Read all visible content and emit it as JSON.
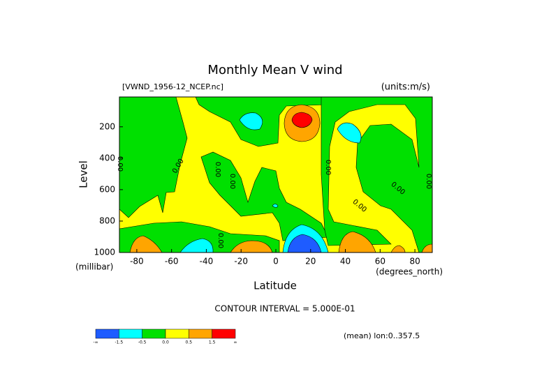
{
  "chart_data": {
    "type": "contour",
    "title": "Monthly Mean V wind",
    "file_label": "[VWND_1956-12_NCEP.nc]",
    "units_label": "(units:m/s)",
    "x_label": "Latitude",
    "x_units": "(degrees_north)",
    "y_label": "Level",
    "y_units": "(millibar)",
    "contour_interval": "CONTOUR INTERVAL = 5.000E-01",
    "footnote": "(mean) lon:0..357.5",
    "xlim": [
      -90,
      90
    ],
    "xticks": [
      -80,
      -60,
      -40,
      -20,
      0,
      20,
      40,
      60,
      80
    ],
    "ylim": [
      1000,
      10
    ],
    "yticks": [
      200,
      400,
      600,
      800,
      1000
    ],
    "contour_labels": [
      "0.00",
      "0.00",
      "0.00",
      "0.00",
      "0.00",
      "0.00",
      "0.00",
      "0.00",
      "0.00"
    ],
    "colorbar": {
      "colors": [
        "#1e5cff",
        "#00ffff",
        "#00e000",
        "#ffff00",
        "#ffa500",
        "#ff0000"
      ],
      "labels": [
        "-∞",
        "-1.5",
        "-0.5",
        "0.0",
        "0.5",
        "1.5",
        "∞"
      ]
    }
  }
}
